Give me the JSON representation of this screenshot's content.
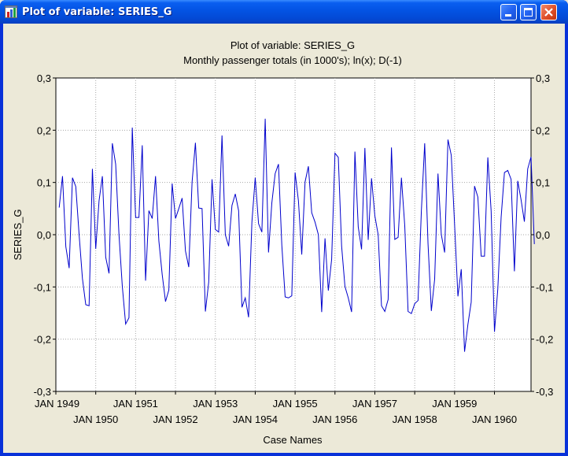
{
  "window": {
    "title": "Plot of variable: SERIES_G"
  },
  "icons": {
    "app": "statistica-chart-icon",
    "minimize": "minimize-icon",
    "maximize": "maximize-icon",
    "close": "close-icon"
  },
  "colors": {
    "series_line": "#0000cc",
    "titlebar": "#0353e3",
    "close_button": "#e0502a"
  },
  "chart_data": {
    "type": "line",
    "title": "Plot of variable: SERIES_G",
    "subtitle": "Monthly passenger totals (in 1000's); ln(x); D(-1)",
    "xlabel": "Case Names",
    "ylabel": "SERIES_G",
    "ylim": [
      -0.3,
      0.3
    ],
    "yticks": [
      -0.3,
      -0.2,
      -0.1,
      0.0,
      0.1,
      0.2,
      0.3
    ],
    "ytick_labels": [
      "-0,3",
      "-0,2",
      "-0,1",
      "0,0",
      "0,1",
      "0,2",
      "0,3"
    ],
    "right_axis_mirrored": true,
    "grid": true,
    "x_tick_labels": [
      "JAN 1949",
      "JAN 1950",
      "JAN 1951",
      "JAN 1952",
      "JAN 1953",
      "JAN 1954",
      "JAN 1955",
      "JAN 1956",
      "JAN 1957",
      "JAN 1958",
      "JAN 1959",
      "JAN 1960"
    ],
    "x_tick_case_index": [
      1,
      13,
      25,
      37,
      49,
      61,
      73,
      85,
      97,
      109,
      121,
      133
    ],
    "x_range_case_index": [
      1,
      144
    ],
    "series": [
      {
        "values": [
          0.052,
          0.112,
          -0.023,
          -0.064,
          0.109,
          0.092,
          0.0,
          -0.084,
          -0.134,
          -0.136,
          0.126,
          -0.027,
          0.065,
          0.112,
          -0.043,
          -0.074,
          0.175,
          0.135,
          0.0,
          -0.099,
          -0.171,
          -0.159,
          0.205,
          0.033,
          0.033,
          0.171,
          -0.088,
          0.046,
          0.031,
          0.112,
          -0.012,
          -0.076,
          -0.128,
          -0.106,
          0.098,
          0.031,
          0.05,
          0.07,
          -0.031,
          -0.062,
          0.101,
          0.176,
          0.051,
          0.05,
          -0.147,
          -0.091,
          0.106,
          0.01,
          0.005,
          0.19,
          0.0,
          -0.022,
          0.056,
          0.078,
          0.046,
          -0.139,
          -0.121,
          -0.158,
          0.024,
          0.109,
          0.021,
          0.005,
          0.222,
          -0.034,
          0.061,
          0.117,
          0.135,
          -0.02,
          -0.119,
          -0.121,
          -0.117,
          0.119,
          0.065,
          -0.038,
          0.101,
          0.131,
          0.042,
          0.024,
          0.0,
          -0.148,
          -0.007,
          -0.107,
          -0.047,
          0.156,
          0.148,
          -0.022,
          -0.099,
          -0.121,
          -0.148,
          0.159,
          0.015,
          -0.028,
          0.166,
          -0.01,
          0.108,
          0.036,
          0.0,
          -0.136,
          -0.147,
          -0.124,
          0.167,
          -0.009,
          -0.005,
          0.109,
          0.017,
          -0.147,
          -0.151,
          -0.132,
          -0.126,
          0.046,
          0.175,
          -0.017,
          -0.146,
          -0.085,
          0.117,
          0.0,
          -0.034,
          0.182,
          0.152,
          0.019,
          -0.118,
          -0.066,
          -0.224,
          -0.172,
          -0.129,
          0.093,
          0.072,
          -0.041,
          -0.041,
          0.148,
          0.045,
          -0.186,
          -0.104,
          0.033,
          0.119,
          0.123,
          0.106,
          -0.07,
          0.103,
          0.067,
          0.025,
          0.126,
          0.149,
          -0.018
        ]
      }
    ]
  }
}
